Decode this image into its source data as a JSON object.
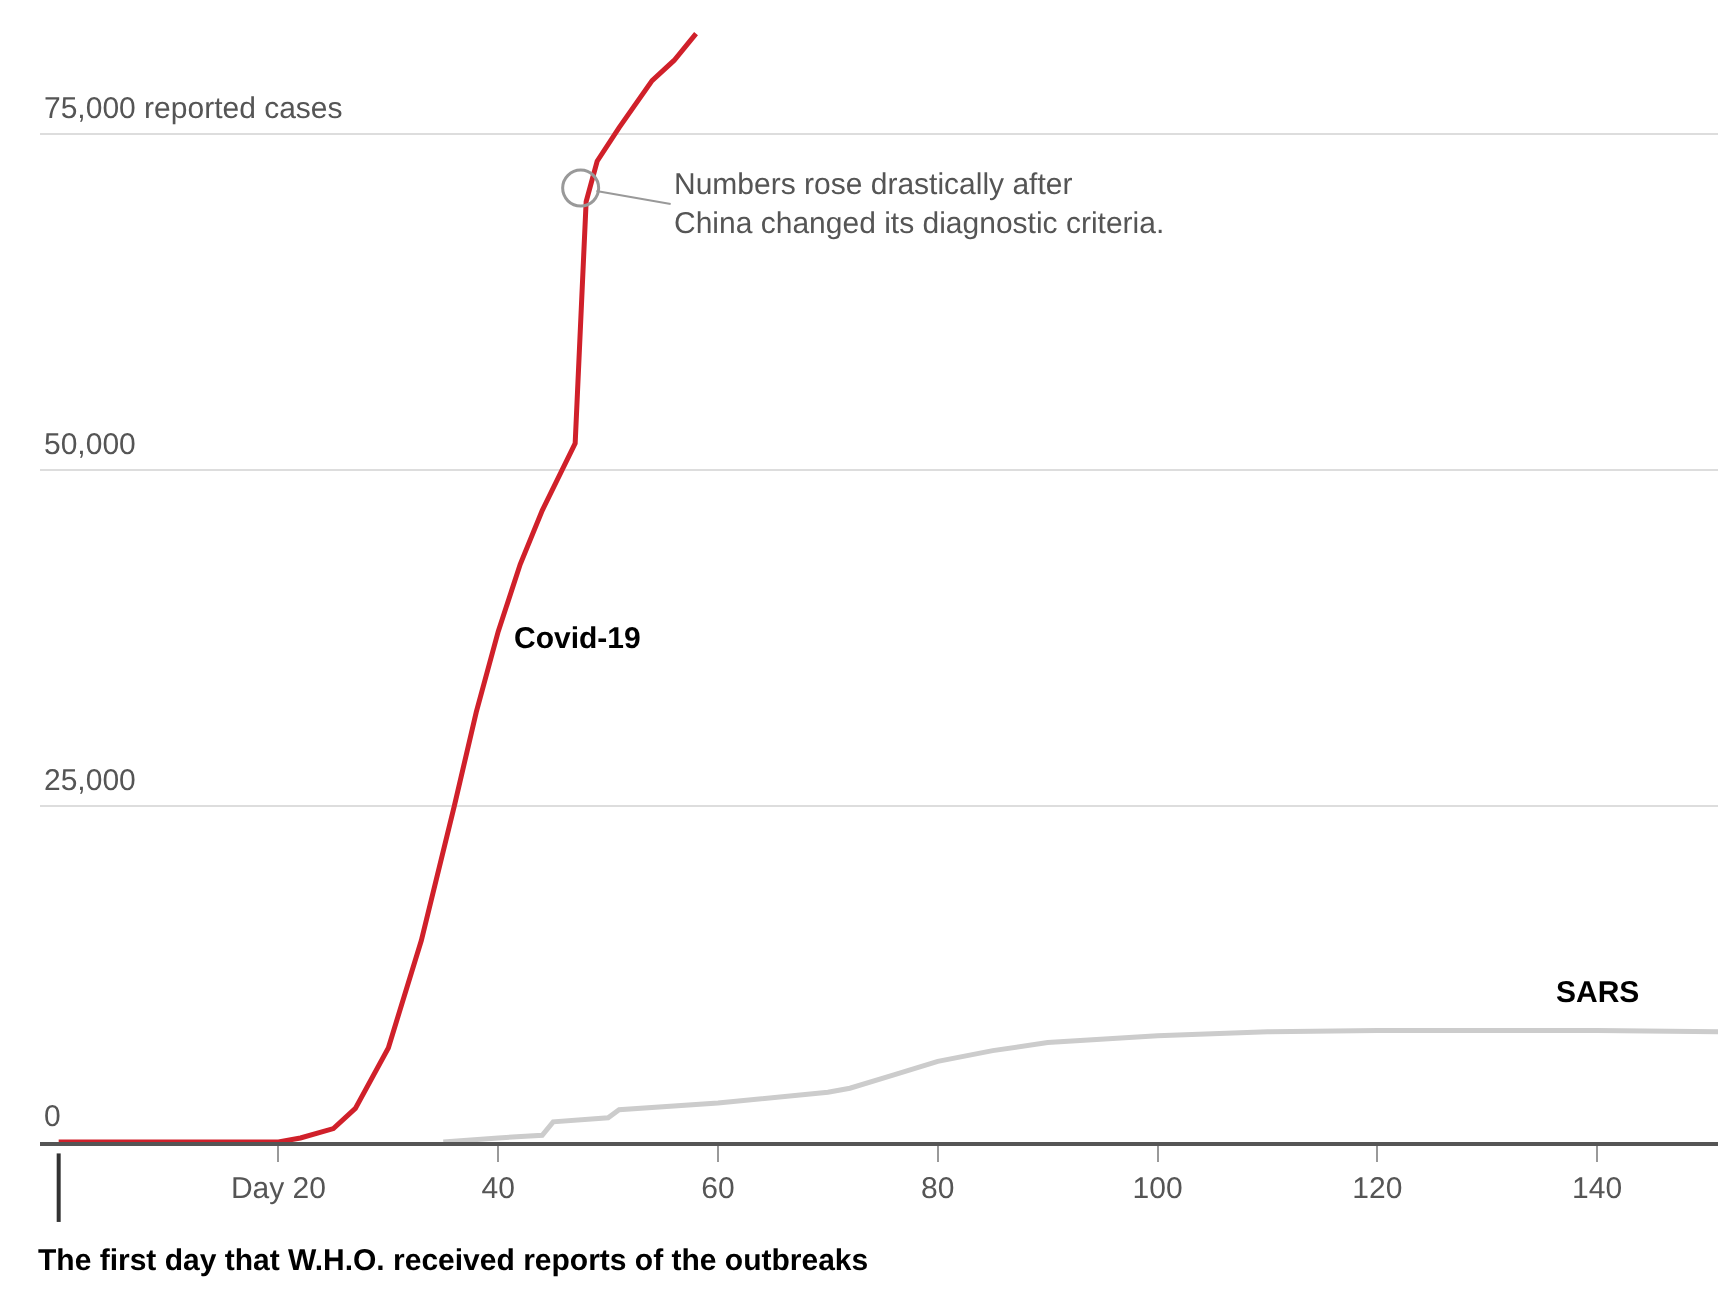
{
  "chart_data": {
    "type": "line",
    "series": [
      {
        "name": "Covid-19",
        "color": "#d0202a",
        "x": [
          0,
          10,
          20,
          22,
          25,
          27,
          30,
          33,
          36,
          38,
          40,
          42,
          44,
          47,
          48,
          49,
          51,
          54,
          56,
          58
        ],
        "values": [
          0,
          0,
          0,
          300,
          1000,
          2500,
          7000,
          15000,
          25000,
          32000,
          38000,
          43000,
          47000,
          52000,
          70000,
          73000,
          75500,
          79000,
          80500,
          82500
        ]
      },
      {
        "name": "SARS",
        "color": "#cccccc",
        "x": [
          35,
          40,
          44,
          45,
          50,
          51,
          60,
          70,
          72,
          76,
          80,
          85,
          90,
          100,
          110,
          120,
          140,
          151
        ],
        "values": [
          0,
          300,
          500,
          1500,
          1800,
          2400,
          2900,
          3700,
          4000,
          5000,
          6000,
          6800,
          7400,
          7900,
          8200,
          8300,
          8300,
          8200
        ]
      }
    ],
    "xlim": [
      -1.7,
      151
    ],
    "ylim": [
      0,
      85000
    ],
    "xticks": [
      {
        "value": 20,
        "label": "Day 20"
      },
      40,
      60,
      80,
      100,
      120,
      140
    ],
    "yticks": [
      0,
      {
        "value": 25000,
        "label": "25,000"
      },
      {
        "value": 50000,
        "label": "50,000"
      },
      {
        "value": 75000,
        "label": "75,000 reported cases"
      }
    ],
    "grid": "y",
    "marker": "none",
    "line_style": "solid",
    "ref_lines": [
      {
        "axis": "x",
        "value": 0,
        "label": "The first day that W.H.O. received reports of the outbreaks"
      }
    ],
    "annotations": [
      {
        "text": "Numbers rose drastically after\nChina changed its diagnostic criteria.",
        "x": 47.5,
        "y": 71000
      }
    ]
  }
}
